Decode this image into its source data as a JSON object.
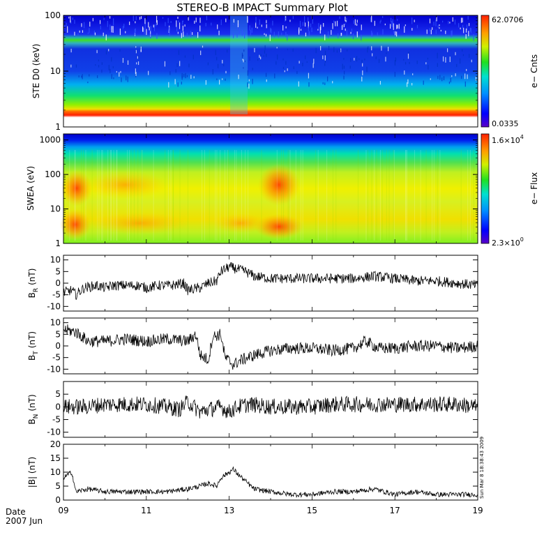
{
  "title": "STEREO-B IMPACT Summary Plot",
  "footer": {
    "date_label": "Date",
    "date_value": "2007 Jun"
  },
  "timestamp": "Sun Mar 8 18:38:43 2009",
  "chart_data": [
    {
      "id": "ste",
      "type": "heatmap",
      "ylabel": "STE D0 (keV)",
      "yscale": "log",
      "ylim": [
        1,
        100
      ],
      "yticks": [
        "1",
        "10",
        "100"
      ],
      "colorbar": {
        "label": "e− Cnts",
        "max": "62.0706",
        "min": "0.0335",
        "scale": "log"
      }
    },
    {
      "id": "swea",
      "type": "heatmap",
      "ylabel": "SWEA (eV)",
      "yscale": "log",
      "ylim": [
        1,
        1500
      ],
      "yticks": [
        "1",
        "10",
        "100",
        "1000"
      ],
      "colorbar": {
        "label": "e− Flux",
        "max_base": "1.6×10",
        "max_exp": "4",
        "min_base": "2.3×10",
        "min_exp": "0",
        "scale": "log"
      }
    },
    {
      "id": "br",
      "type": "line",
      "ylabel_main": "B",
      "ylabel_sub": "R",
      "ylabel_unit": "(nT)",
      "ylim": [
        -12,
        12
      ],
      "yticks": [
        -10,
        -5,
        0,
        5,
        10
      ],
      "anchors": [
        [
          0,
          -4
        ],
        [
          0.2,
          -3
        ],
        [
          0.3,
          -5
        ],
        [
          0.5,
          -2
        ],
        [
          0.8,
          -1
        ],
        [
          1.0,
          -2
        ],
        [
          1.2,
          -1
        ],
        [
          1.5,
          -1
        ],
        [
          1.8,
          -1
        ],
        [
          2.0,
          -2
        ],
        [
          2.3,
          -1
        ],
        [
          2.6,
          -1
        ],
        [
          2.9,
          0
        ],
        [
          3.0,
          -3
        ],
        [
          3.3,
          -2
        ],
        [
          3.5,
          0
        ],
        [
          3.7,
          1
        ],
        [
          3.8,
          5
        ],
        [
          4.0,
          7
        ],
        [
          4.2,
          6
        ],
        [
          4.4,
          5
        ],
        [
          4.6,
          3
        ],
        [
          5.0,
          2
        ],
        [
          5.5,
          2
        ],
        [
          6.0,
          2
        ],
        [
          6.5,
          2
        ],
        [
          7.0,
          2
        ],
        [
          7.5,
          3
        ],
        [
          8.0,
          2
        ],
        [
          8.5,
          1
        ],
        [
          9.0,
          1
        ],
        [
          9.5,
          0
        ],
        [
          10.0,
          -1
        ]
      ]
    },
    {
      "id": "bt",
      "type": "line",
      "ylabel_main": "B",
      "ylabel_sub": "T",
      "ylabel_unit": "(nT)",
      "ylim": [
        -12,
        12
      ],
      "yticks": [
        -10,
        -5,
        0,
        5,
        10
      ],
      "anchors": [
        [
          0,
          7
        ],
        [
          0.3,
          6
        ],
        [
          0.6,
          2
        ],
        [
          1.0,
          2
        ],
        [
          1.5,
          3
        ],
        [
          2.0,
          2
        ],
        [
          2.5,
          3
        ],
        [
          3.0,
          2
        ],
        [
          3.2,
          5
        ],
        [
          3.3,
          -4
        ],
        [
          3.5,
          -6
        ],
        [
          3.6,
          4
        ],
        [
          3.8,
          5
        ],
        [
          3.9,
          -5
        ],
        [
          4.1,
          -8
        ],
        [
          4.3,
          -6
        ],
        [
          4.6,
          -4
        ],
        [
          5.0,
          -2
        ],
        [
          5.5,
          -1
        ],
        [
          6.0,
          -1
        ],
        [
          6.5,
          -2
        ],
        [
          7.0,
          -1
        ],
        [
          7.3,
          2
        ],
        [
          7.6,
          -1
        ],
        [
          8.0,
          -1
        ],
        [
          8.5,
          0
        ],
        [
          9.0,
          0
        ],
        [
          9.5,
          -1
        ],
        [
          10.0,
          0
        ]
      ]
    },
    {
      "id": "bn",
      "type": "line",
      "ylabel_main": "B",
      "ylabel_sub": "N",
      "ylabel_unit": "(nT)",
      "ylim": [
        -12,
        10
      ],
      "yticks": [
        -10,
        -5,
        0,
        5
      ],
      "anchors": [
        [
          0,
          0
        ],
        [
          0.5,
          0
        ],
        [
          1.0,
          1
        ],
        [
          1.5,
          1
        ],
        [
          2.0,
          1
        ],
        [
          2.5,
          0
        ],
        [
          2.8,
          -1
        ],
        [
          3.0,
          2
        ],
        [
          3.3,
          -2
        ],
        [
          3.5,
          -1
        ],
        [
          3.8,
          0
        ],
        [
          4.0,
          -2
        ],
        [
          4.2,
          0
        ],
        [
          4.5,
          1
        ],
        [
          5.0,
          0
        ],
        [
          5.5,
          0
        ],
        [
          6.0,
          0
        ],
        [
          6.5,
          1
        ],
        [
          7.0,
          1
        ],
        [
          7.5,
          1
        ],
        [
          8.0,
          1
        ],
        [
          8.5,
          1
        ],
        [
          9.0,
          1
        ],
        [
          9.5,
          1
        ],
        [
          10.0,
          0
        ]
      ]
    },
    {
      "id": "bmag",
      "type": "line",
      "ylabel": "|B| (nT)",
      "ylim": [
        0,
        20
      ],
      "yticks": [
        0,
        5,
        10,
        15,
        20
      ],
      "anchors": [
        [
          0,
          8
        ],
        [
          0.2,
          10
        ],
        [
          0.3,
          3
        ],
        [
          0.6,
          4
        ],
        [
          1.0,
          3
        ],
        [
          1.5,
          3
        ],
        [
          2.0,
          3
        ],
        [
          2.5,
          3
        ],
        [
          3.0,
          4
        ],
        [
          3.3,
          5
        ],
        [
          3.5,
          6
        ],
        [
          3.7,
          5
        ],
        [
          3.8,
          8
        ],
        [
          4.1,
          11
        ],
        [
          4.3,
          8
        ],
        [
          4.6,
          4
        ],
        [
          5.0,
          3
        ],
        [
          5.5,
          2
        ],
        [
          6.0,
          2
        ],
        [
          6.5,
          3
        ],
        [
          7.0,
          3
        ],
        [
          7.5,
          4
        ],
        [
          8.0,
          2
        ],
        [
          8.5,
          3
        ],
        [
          9.0,
          2
        ],
        [
          9.5,
          2
        ],
        [
          10.0,
          2
        ]
      ]
    }
  ],
  "xaxis": {
    "range": [
      "2007-06-09",
      "2007-06-19"
    ],
    "ticks": [
      "09",
      "11",
      "13",
      "15",
      "17",
      "19"
    ]
  },
  "colors": {
    "line": "#000000",
    "frame": "#000000",
    "background": "#ffffff"
  }
}
